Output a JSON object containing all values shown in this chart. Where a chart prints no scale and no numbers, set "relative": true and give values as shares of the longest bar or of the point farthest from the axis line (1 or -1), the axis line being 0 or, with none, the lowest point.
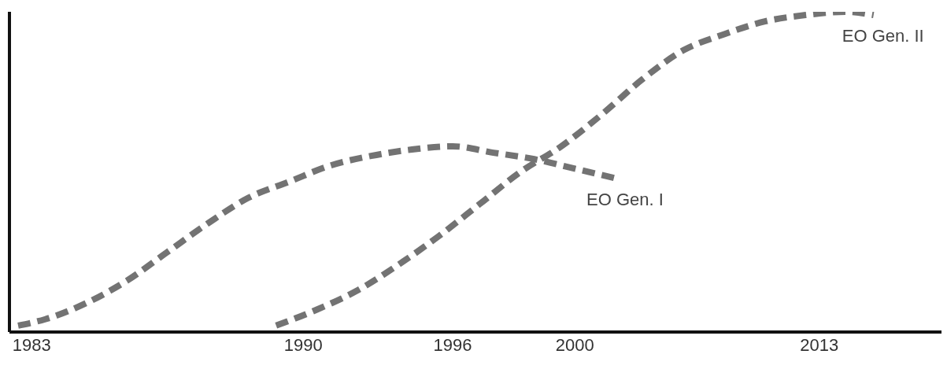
{
  "chart_data": {
    "type": "line",
    "relative": true,
    "line_style": "dashed",
    "marker": "none",
    "grid": false,
    "legend": false,
    "categories": [
      null,
      "1983",
      null,
      null,
      null,
      null,
      null,
      null,
      null,
      null,
      null,
      null,
      null,
      null,
      null,
      null,
      null,
      null,
      null,
      null,
      null,
      "1990",
      null,
      null,
      null,
      null,
      null,
      null,
      null,
      null,
      null,
      null,
      "1996",
      null,
      null,
      null,
      null,
      null,
      null,
      null,
      null,
      "2000",
      null,
      null,
      null,
      null,
      null,
      null,
      null,
      null,
      null,
      null,
      null,
      null,
      null,
      null,
      null,
      null,
      null,
      "2013",
      null,
      null,
      null,
      null,
      null,
      null,
      null,
      null,
      null
    ],
    "series": [
      {
        "name": "EO Gen. I",
        "color": "#737373",
        "values": [
          0.02,
          null,
          0.04,
          null,
          null,
          0.09,
          null,
          null,
          0.16,
          null,
          null,
          0.25,
          null,
          null,
          0.34,
          null,
          null,
          0.42,
          null,
          null,
          0.47,
          null,
          null,
          0.52,
          null,
          null,
          0.55,
          null,
          null,
          0.57,
          null,
          null,
          0.58,
          null,
          null,
          0.56,
          null,
          null,
          0.54,
          null,
          null,
          0.51,
          null,
          null,
          0.48,
          null,
          null,
          null,
          null,
          null,
          null,
          null,
          null,
          null,
          null,
          null,
          null,
          null,
          null,
          null,
          null,
          null,
          null,
          null,
          null,
          null,
          null,
          null,
          null
        ]
      },
      {
        "name": "EO Gen. II",
        "color": "#737373",
        "values": [
          null,
          null,
          null,
          null,
          null,
          null,
          null,
          null,
          null,
          null,
          null,
          null,
          null,
          null,
          null,
          null,
          null,
          null,
          null,
          0.02,
          null,
          null,
          0.07,
          null,
          null,
          0.13,
          null,
          null,
          0.21,
          null,
          null,
          0.3,
          null,
          null,
          0.4,
          null,
          null,
          0.5,
          null,
          null,
          0.58,
          null,
          null,
          0.68,
          null,
          null,
          0.79,
          null,
          null,
          0.88,
          null,
          null,
          0.93,
          null,
          null,
          0.97,
          null,
          null,
          0.99,
          null,
          null,
          1,
          null,
          0.99,
          null,
          null,
          null,
          null,
          null
        ]
      }
    ]
  }
}
